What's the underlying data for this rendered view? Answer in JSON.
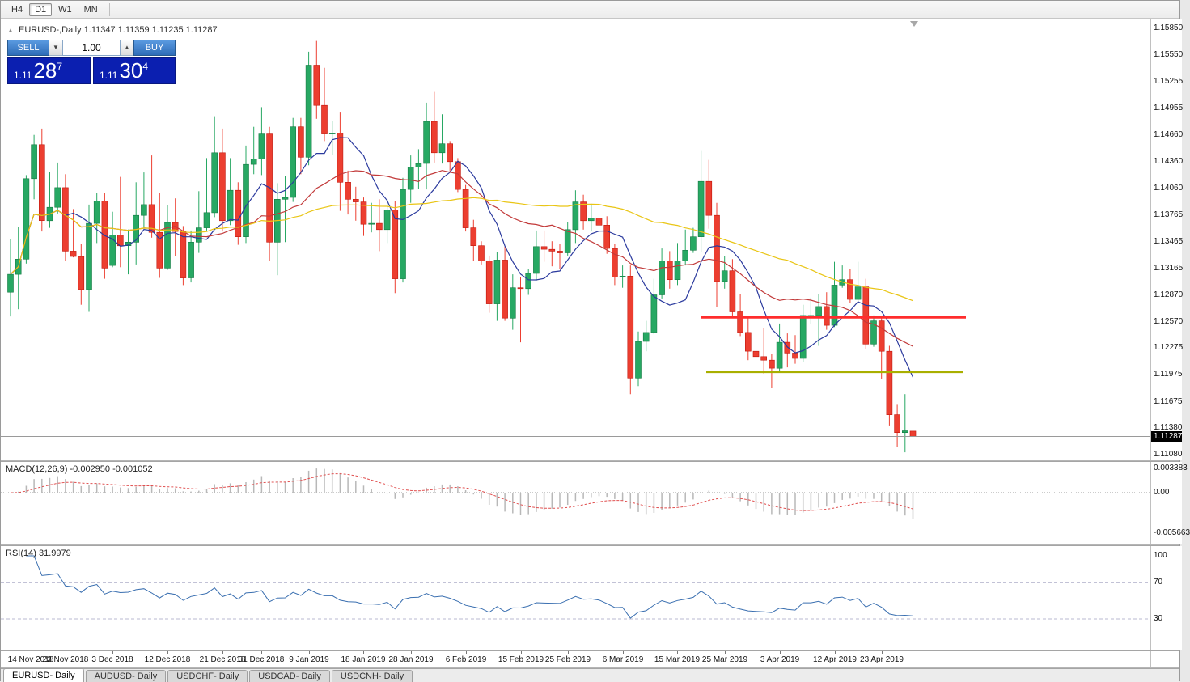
{
  "toolbar": {
    "timeframes": [
      {
        "label": "H4",
        "active": false
      },
      {
        "label": "D1",
        "active": true
      },
      {
        "label": "W1",
        "active": false
      },
      {
        "label": "MN",
        "active": false
      }
    ]
  },
  "chart": {
    "collapse_icon": "▲",
    "title_symbol": "EURUSD-,Daily",
    "title_ohlc": "1.11347 1.11359 1.11235 1.11287"
  },
  "trade_panel": {
    "sell_label": "SELL",
    "buy_label": "BUY",
    "volume": "1.00",
    "down_icon": "▼",
    "up_icon": "▲",
    "sell_price": {
      "prefix": "1.11",
      "big": "28",
      "sup": "7"
    },
    "buy_price": {
      "prefix": "1.11",
      "big": "30",
      "sup": "4"
    }
  },
  "price_scale": {
    "labels": [
      "1.15850",
      "1.15550",
      "1.15255",
      "1.14955",
      "1.14660",
      "1.14360",
      "1.14060",
      "1.13765",
      "1.13465",
      "1.13165",
      "1.12870",
      "1.12570",
      "1.12275",
      "1.11975",
      "1.11675",
      "1.11380",
      "1.11080"
    ],
    "bid_badge": "1.11287"
  },
  "macd": {
    "label": "MACD(12,26,9)",
    "values": "-0.002950 -0.001052",
    "scale": [
      "0.003383",
      "0.00",
      "-0.005663"
    ]
  },
  "rsi": {
    "label": "RSI(14)",
    "value": "31.9979",
    "scale": [
      "100",
      "70",
      "30"
    ]
  },
  "time_axis": {
    "labels": [
      "14 Nov 2018",
      "23 Nov 2018",
      "3 Dec 2018",
      "12 Dec 2018",
      "21 Dec 2018",
      "31 Dec 2018",
      "9 Jan 2019",
      "18 Jan 2019",
      "28 Jan 2019",
      "6 Feb 2019",
      "15 Feb 2019",
      "25 Feb 2019",
      "6 Mar 2019",
      "15 Mar 2019",
      "25 Mar 2019",
      "3 Apr 2019",
      "12 Apr 2019",
      "23 Apr 2019"
    ]
  },
  "tabs": [
    {
      "label": "EURUSD- Daily",
      "active": true
    },
    {
      "label": "AUDUSD- Daily",
      "active": false
    },
    {
      "label": "USDCHF- Daily",
      "active": false
    },
    {
      "label": "USDCAD- Daily",
      "active": false
    },
    {
      "label": "USDCNH- Daily",
      "active": false
    }
  ],
  "chart_data": {
    "type": "candlestick",
    "symbol": "EURUSD-",
    "timeframe": "Daily",
    "title": "EURUSD-,Daily",
    "current_bar": {
      "open": 1.11347,
      "high": 1.11359,
      "low": 1.11235,
      "close": 1.11287
    },
    "price_range": {
      "max": 1.1596,
      "min": 1.1102
    },
    "candles": [
      [
        1.129,
        1.1349,
        1.1263,
        1.131
      ],
      [
        1.131,
        1.1363,
        1.1271,
        1.1327
      ],
      [
        1.1327,
        1.1421,
        1.1322,
        1.1417
      ],
      [
        1.1417,
        1.1466,
        1.1394,
        1.1455
      ],
      [
        1.1455,
        1.1473,
        1.1358,
        1.137
      ],
      [
        1.137,
        1.1425,
        1.1362,
        1.1385
      ],
      [
        1.1385,
        1.1435,
        1.1378,
        1.1407
      ],
      [
        1.1407,
        1.1422,
        1.1325,
        1.1336
      ],
      [
        1.1336,
        1.1383,
        1.1329,
        1.133
      ],
      [
        1.133,
        1.1344,
        1.1276,
        1.1293
      ],
      [
        1.1293,
        1.1388,
        1.1268,
        1.1367
      ],
      [
        1.1367,
        1.1401,
        1.1345,
        1.1392
      ],
      [
        1.1392,
        1.1401,
        1.1305,
        1.1317
      ],
      [
        1.132,
        1.138,
        1.1318,
        1.1354
      ],
      [
        1.1354,
        1.1419,
        1.1318,
        1.1342
      ],
      [
        1.1342,
        1.136,
        1.131,
        1.1346
      ],
      [
        1.1346,
        1.1413,
        1.1321,
        1.1376
      ],
      [
        1.1376,
        1.1424,
        1.1361,
        1.1388
      ],
      [
        1.1388,
        1.1443,
        1.1351,
        1.1357
      ],
      [
        1.1357,
        1.1401,
        1.1306,
        1.1317
      ],
      [
        1.1317,
        1.1387,
        1.1315,
        1.1368
      ],
      [
        1.1368,
        1.1395,
        1.133,
        1.1358
      ],
      [
        1.1358,
        1.1364,
        1.1298,
        1.1306
      ],
      [
        1.1306,
        1.1359,
        1.1301,
        1.1346
      ],
      [
        1.1346,
        1.1403,
        1.1334,
        1.1362
      ],
      [
        1.1362,
        1.144,
        1.1359,
        1.1379
      ],
      [
        1.1379,
        1.1486,
        1.1374,
        1.1446
      ],
      [
        1.1446,
        1.1473,
        1.1358,
        1.137
      ],
      [
        1.137,
        1.144,
        1.1365,
        1.1404
      ],
      [
        1.1404,
        1.1413,
        1.1343,
        1.1352
      ],
      [
        1.1352,
        1.1454,
        1.1345,
        1.1433
      ],
      [
        1.1433,
        1.1475,
        1.1422,
        1.1439
      ],
      [
        1.1439,
        1.1497,
        1.1421,
        1.1467
      ],
      [
        1.1467,
        1.1475,
        1.1325,
        1.1346
      ],
      [
        1.1346,
        1.1412,
        1.1309,
        1.1394
      ],
      [
        1.1394,
        1.142,
        1.1346,
        1.1396
      ],
      [
        1.1396,
        1.1485,
        1.1391,
        1.1475
      ],
      [
        1.1475,
        1.1485,
        1.1422,
        1.1441
      ],
      [
        1.1441,
        1.1559,
        1.1432,
        1.1544
      ],
      [
        1.1544,
        1.1571,
        1.1484,
        1.1499
      ],
      [
        1.1499,
        1.1541,
        1.1459,
        1.1467
      ],
      [
        1.1467,
        1.1482,
        1.1444,
        1.1468
      ],
      [
        1.1468,
        1.1491,
        1.1381,
        1.1413
      ],
      [
        1.1413,
        1.1426,
        1.1377,
        1.1394
      ],
      [
        1.1394,
        1.1408,
        1.137,
        1.1391
      ],
      [
        1.1391,
        1.1396,
        1.1353,
        1.1366
      ],
      [
        1.1366,
        1.139,
        1.1357,
        1.1367
      ],
      [
        1.1367,
        1.1394,
        1.1336,
        1.136
      ],
      [
        1.136,
        1.1394,
        1.1345,
        1.1382
      ],
      [
        1.1382,
        1.1392,
        1.1289,
        1.1305
      ],
      [
        1.1305,
        1.1418,
        1.1301,
        1.1405
      ],
      [
        1.1405,
        1.1443,
        1.139,
        1.143
      ],
      [
        1.143,
        1.145,
        1.1406,
        1.1434
      ],
      [
        1.1434,
        1.1502,
        1.1405,
        1.1481
      ],
      [
        1.1481,
        1.1514,
        1.1435,
        1.1446
      ],
      [
        1.1446,
        1.1489,
        1.1434,
        1.1456
      ],
      [
        1.1456,
        1.1459,
        1.1425,
        1.1436
      ],
      [
        1.1436,
        1.144,
        1.1402,
        1.1405
      ],
      [
        1.1405,
        1.141,
        1.1358,
        1.1362
      ],
      [
        1.1362,
        1.1371,
        1.1325,
        1.1342
      ],
      [
        1.1342,
        1.1347,
        1.1321,
        1.1325
      ],
      [
        1.1325,
        1.1331,
        1.1267,
        1.1277
      ],
      [
        1.1277,
        1.1335,
        1.1258,
        1.1326
      ],
      [
        1.1326,
        1.1341,
        1.1258,
        1.1261
      ],
      [
        1.1261,
        1.131,
        1.1248,
        1.1295
      ],
      [
        1.1295,
        1.1307,
        1.1234,
        1.1294
      ],
      [
        1.1294,
        1.1316,
        1.1287,
        1.1311
      ],
      [
        1.1311,
        1.1359,
        1.1303,
        1.1341
      ],
      [
        1.1341,
        1.1359,
        1.1324,
        1.1338
      ],
      [
        1.1338,
        1.1347,
        1.1319,
        1.1336
      ],
      [
        1.1336,
        1.1344,
        1.1316,
        1.1334
      ],
      [
        1.1334,
        1.1368,
        1.1331,
        1.136
      ],
      [
        1.136,
        1.1404,
        1.1345,
        1.1391
      ],
      [
        1.1391,
        1.1399,
        1.136,
        1.137
      ],
      [
        1.137,
        1.1389,
        1.1358,
        1.1373
      ],
      [
        1.1373,
        1.1409,
        1.1358,
        1.1365
      ],
      [
        1.1365,
        1.1375,
        1.1333,
        1.1339
      ],
      [
        1.1339,
        1.1344,
        1.1298,
        1.1307
      ],
      [
        1.1307,
        1.132,
        1.1295,
        1.1308
      ],
      [
        1.1308,
        1.132,
        1.1176,
        1.1194
      ],
      [
        1.1194,
        1.1246,
        1.1185,
        1.1235
      ],
      [
        1.1235,
        1.1258,
        1.1224,
        1.1245
      ],
      [
        1.1245,
        1.1305,
        1.1243,
        1.1287
      ],
      [
        1.1287,
        1.1339,
        1.1283,
        1.1325
      ],
      [
        1.1325,
        1.1336,
        1.1294,
        1.1304
      ],
      [
        1.1304,
        1.1345,
        1.1298,
        1.1325
      ],
      [
        1.1325,
        1.136,
        1.132,
        1.1337
      ],
      [
        1.1337,
        1.1362,
        1.1334,
        1.1352
      ],
      [
        1.1352,
        1.1448,
        1.1335,
        1.1414
      ],
      [
        1.1414,
        1.1438,
        1.1361,
        1.1376
      ],
      [
        1.1376,
        1.139,
        1.1273,
        1.1302
      ],
      [
        1.1302,
        1.133,
        1.1294,
        1.1314
      ],
      [
        1.1314,
        1.1327,
        1.1261,
        1.1268
      ],
      [
        1.1268,
        1.1288,
        1.1241,
        1.1245
      ],
      [
        1.1245,
        1.1262,
        1.1214,
        1.1224
      ],
      [
        1.1224,
        1.1249,
        1.121,
        1.1218
      ],
      [
        1.1218,
        1.125,
        1.1199,
        1.1214
      ],
      [
        1.1214,
        1.1221,
        1.1183,
        1.1205
      ],
      [
        1.1205,
        1.1255,
        1.1201,
        1.1234
      ],
      [
        1.1234,
        1.1244,
        1.1206,
        1.1222
      ],
      [
        1.1222,
        1.1242,
        1.121,
        1.1216
      ],
      [
        1.1216,
        1.1276,
        1.1212,
        1.1264
      ],
      [
        1.1264,
        1.1284,
        1.1254,
        1.1264
      ],
      [
        1.1264,
        1.1288,
        1.123,
        1.1274
      ],
      [
        1.1274,
        1.129,
        1.1248,
        1.1253
      ],
      [
        1.1253,
        1.1324,
        1.1251,
        1.1298
      ],
      [
        1.1298,
        1.132,
        1.1295,
        1.1304
      ],
      [
        1.1304,
        1.1316,
        1.1278,
        1.1282
      ],
      [
        1.1282,
        1.1324,
        1.128,
        1.1296
      ],
      [
        1.1296,
        1.1305,
        1.1226,
        1.1232
      ],
      [
        1.1232,
        1.1264,
        1.1229,
        1.1258
      ],
      [
        1.1258,
        1.1262,
        1.1193,
        1.1224
      ],
      [
        1.1224,
        1.123,
        1.1141,
        1.1153
      ],
      [
        1.1153,
        1.1165,
        1.1117,
        1.1133
      ],
      [
        1.1133,
        1.1176,
        1.1111,
        1.1135
      ],
      [
        1.11347,
        1.11359,
        1.11235,
        1.11287
      ]
    ],
    "label_indices": [
      0,
      7,
      13,
      20,
      27,
      32,
      38,
      45,
      51,
      58,
      65,
      71,
      78,
      85,
      91,
      98,
      105,
      111
    ],
    "overlays": {
      "resistance_line": {
        "price": 1.1262,
        "color": "#ff2d2d"
      },
      "support_line": {
        "price": 1.1201,
        "color": "#a9af00"
      },
      "bid": 1.11287
    },
    "moving_averages": [
      {
        "period": 8,
        "color": "#2b3a9e"
      },
      {
        "period": 20,
        "color": "#c23a3a"
      },
      {
        "period": 50,
        "color": "#e9c514"
      }
    ],
    "indicators": {
      "macd": {
        "fast": 12,
        "slow": 26,
        "signal": 9,
        "current": -0.00295,
        "current_signal": -0.001052,
        "scale_top": 0.003383,
        "scale_zero": 0.0,
        "scale_bottom": -0.005663
      },
      "rsi": {
        "period": 14,
        "current": 31.9979,
        "levels": [
          70,
          30
        ],
        "scale": [
          100,
          70,
          30
        ]
      }
    },
    "colors": {
      "up": "#27a863",
      "down": "#ec3e30",
      "macd_hist": "#b8b8b8",
      "macd_signal": "#e05050",
      "rsi_line": "#3a6fb0"
    }
  }
}
